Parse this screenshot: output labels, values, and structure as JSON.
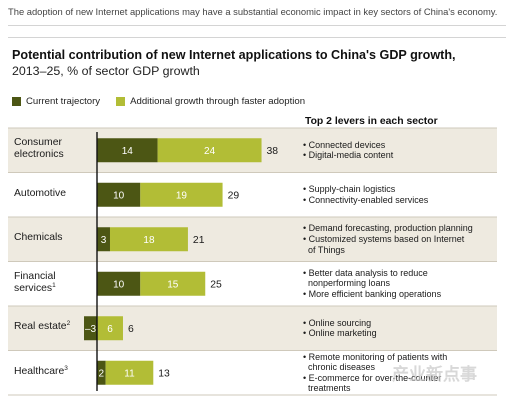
{
  "intro": "The adoption of new Internet applications may have a substantial economic impact in key sectors of China's economy.",
  "watermark": "产业新点事",
  "colors": {
    "current": "#4c5614",
    "additional": "#b2bd36",
    "row_band": "#eeeae0",
    "divider": "#cfc9bb",
    "axis": "#111111"
  },
  "chart_data": {
    "type": "bar",
    "stacked": true,
    "orientation": "horizontal",
    "title": "Potential contribution of new Internet applications to China's GDP growth,",
    "subtitle": "2013–25, % of sector GDP growth",
    "legend_position": "top-left",
    "xlim": [
      -3,
      38
    ],
    "categories": [
      "Consumer electronics",
      "Automotive",
      "Chemicals",
      "Financial services",
      "Real estate",
      "Healthcare"
    ],
    "series": [
      {
        "name": "Current trajectory",
        "values": [
          14,
          10,
          3,
          10,
          -3,
          2
        ]
      },
      {
        "name": "Additional growth through faster adoption",
        "values": [
          24,
          19,
          18,
          15,
          6,
          11
        ]
      }
    ],
    "totals": [
      38,
      29,
      21,
      25,
      6,
      13
    ]
  },
  "rows": [
    {
      "label_lines": [
        "Consumer",
        "electronics"
      ],
      "sup": "",
      "levers": [
        "Connected devices",
        "Digital-media content"
      ]
    },
    {
      "label_lines": [
        "Automotive"
      ],
      "sup": "",
      "levers": [
        "Supply-chain logistics",
        "Connectivity-enabled services"
      ]
    },
    {
      "label_lines": [
        "Chemicals"
      ],
      "sup": "",
      "levers": [
        "Demand forecasting, production planning",
        "Customized systems based on Internet",
        "of Things"
      ]
    },
    {
      "label_lines": [
        "Financial",
        "services"
      ],
      "sup": "1",
      "levers": [
        "Better data analysis to reduce",
        "nonperforming loans",
        "More efficient banking operations"
      ]
    },
    {
      "label_lines": [
        "Real estate"
      ],
      "sup": "2",
      "levers": [
        "Online sourcing",
        "Online marketing"
      ]
    },
    {
      "label_lines": [
        "Healthcare"
      ],
      "sup": "3",
      "levers": [
        "Remote monitoring of patients with",
        "chronic diseases",
        "E-commerce for over-the-counter",
        "treatments"
      ]
    }
  ],
  "lever_bullets": [
    [
      true,
      true
    ],
    [
      true,
      true
    ],
    [
      true,
      true,
      false
    ],
    [
      true,
      false,
      true
    ],
    [
      true,
      true
    ],
    [
      true,
      false,
      true,
      false
    ]
  ],
  "levers_header": "Top 2 levers in each sector"
}
